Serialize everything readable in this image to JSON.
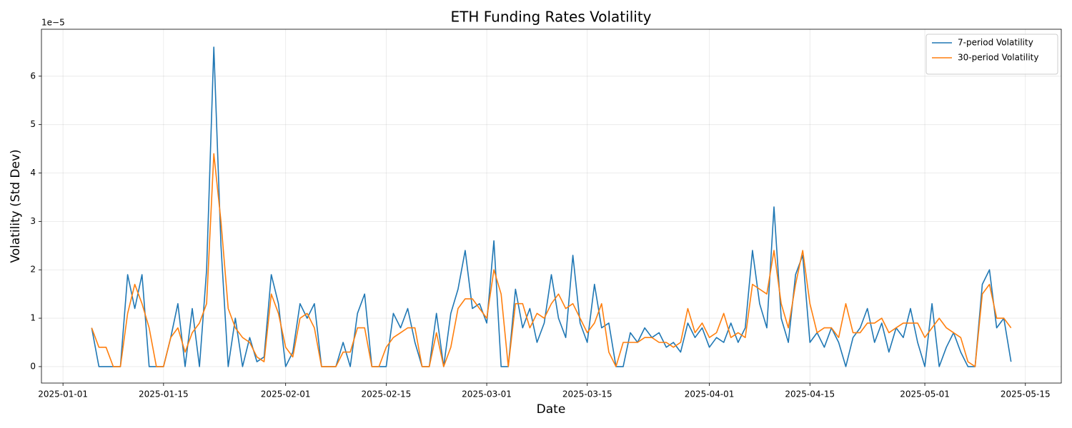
{
  "chart_data": {
    "type": "line",
    "title": "ETH Funding Rates Volatility",
    "x_label": "Date",
    "y_label": "Volatility (Std Dev)",
    "y_offset_label": "1e−5",
    "grid": true,
    "legend": "upper right",
    "xlim": [
      "2024-12-29",
      "2025-05-20"
    ],
    "xticks": [
      "2025-01-01",
      "2025-01-15",
      "2025-02-01",
      "2025-02-15",
      "2025-03-01",
      "2025-03-15",
      "2025-04-01",
      "2025-04-15",
      "2025-05-01",
      "2025-05-15"
    ],
    "ylim": [
      -0.34,
      6.97
    ],
    "yticks": [
      0,
      1,
      2,
      3,
      4,
      5,
      6
    ],
    "x": [
      "2025-01-05",
      "2025-01-06",
      "2025-01-07",
      "2025-01-08",
      "2025-01-09",
      "2025-01-10",
      "2025-01-11",
      "2025-01-12",
      "2025-01-13",
      "2025-01-14",
      "2025-01-15",
      "2025-01-16",
      "2025-01-17",
      "2025-01-18",
      "2025-01-19",
      "2025-01-20",
      "2025-01-21",
      "2025-01-22",
      "2025-01-23",
      "2025-01-24",
      "2025-01-25",
      "2025-01-26",
      "2025-01-27",
      "2025-01-28",
      "2025-01-29",
      "2025-01-30",
      "2025-01-31",
      "2025-02-01",
      "2025-02-02",
      "2025-02-03",
      "2025-02-04",
      "2025-02-05",
      "2025-02-06",
      "2025-02-07",
      "2025-02-08",
      "2025-02-09",
      "2025-02-10",
      "2025-02-11",
      "2025-02-12",
      "2025-02-13",
      "2025-02-14",
      "2025-02-15",
      "2025-02-16",
      "2025-02-17",
      "2025-02-18",
      "2025-02-19",
      "2025-02-20",
      "2025-02-21",
      "2025-02-22",
      "2025-02-23",
      "2025-02-24",
      "2025-02-25",
      "2025-02-26",
      "2025-02-27",
      "2025-02-28",
      "2025-03-01",
      "2025-03-02",
      "2025-03-03",
      "2025-03-04",
      "2025-03-05",
      "2025-03-06",
      "2025-03-07",
      "2025-03-08",
      "2025-03-09",
      "2025-03-10",
      "2025-03-11",
      "2025-03-12",
      "2025-03-13",
      "2025-03-14",
      "2025-03-15",
      "2025-03-16",
      "2025-03-17",
      "2025-03-18",
      "2025-03-19",
      "2025-03-20",
      "2025-03-21",
      "2025-03-22",
      "2025-03-23",
      "2025-03-24",
      "2025-03-25",
      "2025-03-26",
      "2025-03-27",
      "2025-03-28",
      "2025-03-29",
      "2025-03-30",
      "2025-03-31",
      "2025-04-01",
      "2025-04-02",
      "2025-04-03",
      "2025-04-04",
      "2025-04-05",
      "2025-04-06",
      "2025-04-07",
      "2025-04-08",
      "2025-04-09",
      "2025-04-10",
      "2025-04-11",
      "2025-04-12",
      "2025-04-13",
      "2025-04-14",
      "2025-04-15",
      "2025-04-16",
      "2025-04-17",
      "2025-04-18",
      "2025-04-19",
      "2025-04-20",
      "2025-04-21",
      "2025-04-22",
      "2025-04-23",
      "2025-04-24",
      "2025-04-25",
      "2025-04-26",
      "2025-04-27",
      "2025-04-28",
      "2025-04-29",
      "2025-04-30",
      "2025-05-01",
      "2025-05-02",
      "2025-05-03",
      "2025-05-04",
      "2025-05-05",
      "2025-05-06",
      "2025-05-07",
      "2025-05-08",
      "2025-05-09",
      "2025-05-10",
      "2025-05-11",
      "2025-05-12",
      "2025-05-13"
    ],
    "series": [
      {
        "name": "7-period Volatility",
        "color": "#1f77b4",
        "values": [
          0.8,
          0,
          0,
          0,
          0,
          1.9,
          1.2,
          1.9,
          0,
          0,
          0,
          0.6,
          1.3,
          0,
          1.2,
          0,
          2.0,
          6.6,
          2.5,
          0,
          1.0,
          0,
          0.6,
          0.1,
          0.2,
          1.9,
          1.3,
          0,
          0.3,
          1.3,
          1.0,
          1.3,
          0,
          0,
          0,
          0.5,
          0,
          1.1,
          1.5,
          0,
          0,
          0,
          1.1,
          0.8,
          1.2,
          0.5,
          0,
          0,
          1.1,
          0,
          1.1,
          1.6,
          2.4,
          1.2,
          1.3,
          0.9,
          2.6,
          0,
          0,
          1.6,
          0.8,
          1.2,
          0.5,
          0.9,
          1.9,
          1.0,
          0.6,
          2.3,
          0.9,
          0.5,
          1.7,
          0.8,
          0.9,
          0,
          0,
          0.7,
          0.5,
          0.8,
          0.6,
          0.7,
          0.4,
          0.5,
          0.3,
          0.9,
          0.6,
          0.8,
          0.4,
          0.6,
          0.5,
          0.9,
          0.5,
          0.8,
          2.4,
          1.3,
          0.8,
          3.3,
          1.0,
          0.5,
          1.9,
          2.3,
          0.5,
          0.7,
          0.4,
          0.8,
          0.5,
          0,
          0.6,
          0.8,
          1.2,
          0.5,
          0.9,
          0.3,
          0.8,
          0.6,
          1.2,
          0.5,
          0,
          1.3,
          0,
          0.4,
          0.7,
          0.3,
          0,
          0,
          1.7,
          2.0,
          0.8,
          1.0,
          0.1
        ]
      },
      {
        "name": "30-period Volatility",
        "color": "#ff7f0e",
        "values": [
          0.8,
          0.4,
          0.4,
          0,
          0,
          1.1,
          1.7,
          1.3,
          0.8,
          0,
          0,
          0.6,
          0.8,
          0.3,
          0.7,
          0.9,
          1.3,
          4.4,
          3.0,
          1.2,
          0.8,
          0.6,
          0.5,
          0.2,
          0.1,
          1.5,
          1.1,
          0.4,
          0.2,
          1.0,
          1.1,
          0.8,
          0,
          0,
          0,
          0.3,
          0.3,
          0.8,
          0.8,
          0,
          0,
          0.4,
          0.6,
          0.7,
          0.8,
          0.8,
          0,
          0,
          0.7,
          0,
          0.4,
          1.2,
          1.4,
          1.4,
          1.2,
          1.0,
          2.0,
          1.5,
          0,
          1.3,
          1.3,
          0.8,
          1.1,
          1.0,
          1.3,
          1.5,
          1.2,
          1.3,
          1.0,
          0.7,
          0.9,
          1.3,
          0.3,
          0,
          0.5,
          0.5,
          0.5,
          0.6,
          0.6,
          0.5,
          0.5,
          0.4,
          0.5,
          1.2,
          0.7,
          0.9,
          0.6,
          0.7,
          1.1,
          0.6,
          0.7,
          0.6,
          1.7,
          1.6,
          1.5,
          2.4,
          1.3,
          0.8,
          1.7,
          2.4,
          1.3,
          0.7,
          0.8,
          0.8,
          0.6,
          1.3,
          0.7,
          0.7,
          0.9,
          0.9,
          1.0,
          0.7,
          0.8,
          0.9,
          0.9,
          0.9,
          0.6,
          0.8,
          1.0,
          0.8,
          0.7,
          0.6,
          0.1,
          0,
          1.5,
          1.7,
          1.0,
          1.0,
          0.8
        ]
      }
    ]
  }
}
